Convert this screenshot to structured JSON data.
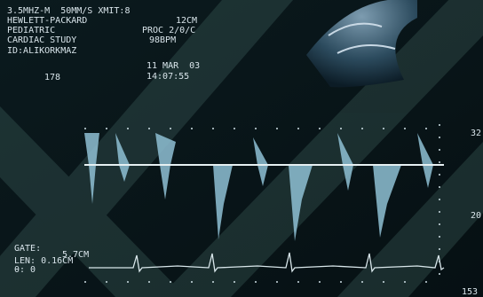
{
  "header": {
    "probe": "3.5MHZ-M  50MM/S XMIT:8",
    "manufacturer": "HEWLETT-PACKARD",
    "depth": "12CM",
    "preset": "PEDIATRIC",
    "processing": "PROC 2/0/C",
    "study": "CARDIAC STUDY",
    "heart_rate": "98BPM",
    "patient_id": "ID:ALIKORKMAZ",
    "frame": "178",
    "date": "11 MAR  03",
    "time": "14:07:55"
  },
  "gate": {
    "gate_label": "GATE:",
    "gate_value": "5.7CM",
    "length": "LEN: 0.16CM",
    "angle": "θ: 0"
  },
  "scale": {
    "upper": "32",
    "lower": "20",
    "corner": "153"
  }
}
